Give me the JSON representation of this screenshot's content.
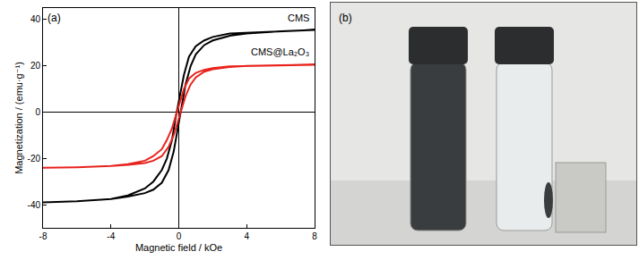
{
  "chart_data": {
    "type": "line",
    "panel_label": "(a)",
    "x_label": "Magnetic field / kOe",
    "y_label": "Magnetization / (emu·g⁻¹)",
    "xlim": [
      -8,
      8
    ],
    "xticks": [
      -8,
      -4,
      0,
      4,
      8
    ],
    "ylim": [
      -50,
      45
    ],
    "yticks": [
      -40,
      -20,
      0,
      20,
      40
    ],
    "grid": false,
    "x": [
      -8,
      -6,
      -4,
      -3,
      -2,
      -1.5,
      -1,
      -0.6,
      -0.3,
      0,
      0.2,
      0.4,
      0.7,
      1,
      1.5,
      2,
      3,
      4,
      6,
      8,
      8,
      6,
      4,
      3,
      2,
      1.5,
      1,
      0.6,
      0.3,
      0,
      -0.2,
      -0.4,
      -0.7,
      -1,
      -1.5,
      -2,
      -3,
      -4,
      -6,
      -8
    ],
    "series": [
      {
        "name": "CMS",
        "color": "#000000",
        "values": [
          -39,
          -38.5,
          -37.5,
          -36.5,
          -35,
          -33.5,
          -30.5,
          -25,
          -17,
          -5,
          3,
          12,
          20,
          25,
          29,
          31,
          33,
          34,
          35,
          35.5,
          35.5,
          35,
          34.5,
          34,
          32.5,
          31,
          28.5,
          24,
          16,
          5,
          -3,
          -12,
          -20,
          -25,
          -30,
          -33,
          -36,
          -37.5,
          -38.5,
          -39
        ]
      },
      {
        "name": "CMS@La₂O₃",
        "color": "#e8221d",
        "values": [
          -24,
          -23.8,
          -23.3,
          -22.8,
          -22,
          -21,
          -19,
          -15,
          -10,
          -3,
          2,
          7,
          12,
          15,
          17.5,
          18.5,
          19.5,
          20,
          20.3,
          20.5,
          20.5,
          20.3,
          20,
          19.8,
          19,
          18.3,
          17,
          14.5,
          10,
          3,
          -2,
          -7,
          -12,
          -16,
          -19,
          -21,
          -22.5,
          -23.3,
          -23.8,
          -24
        ]
      }
    ]
  },
  "photo": {
    "panel_label": "(b)"
  }
}
